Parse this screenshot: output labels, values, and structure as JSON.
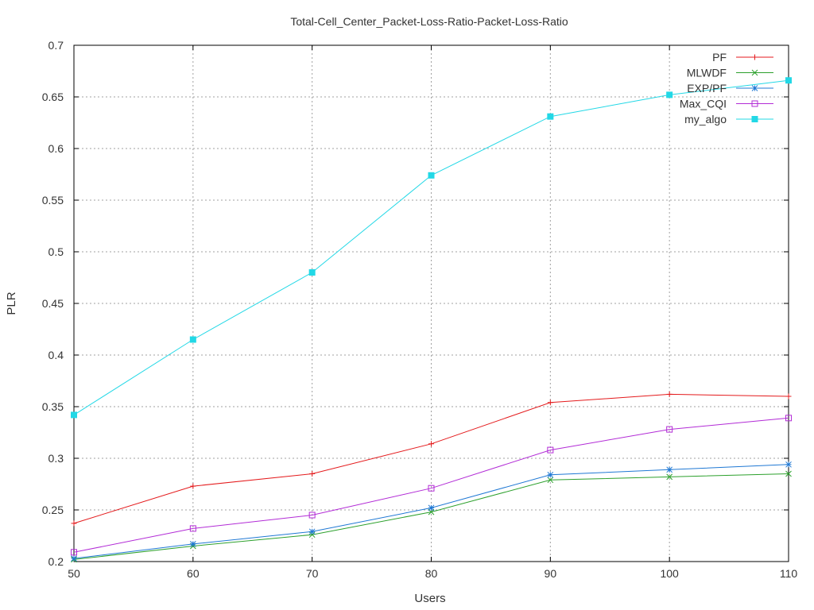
{
  "chart_data": {
    "type": "line",
    "title": "Total-Cell_Center_Packet-Loss-Ratio-Packet-Loss-Ratio",
    "xlabel": "Users",
    "ylabel": "PLR",
    "x": [
      50,
      60,
      70,
      80,
      90,
      100,
      110
    ],
    "xlim": [
      50,
      110
    ],
    "ylim": [
      0.2,
      0.7
    ],
    "x_ticks": [
      "50",
      "60",
      "70",
      "80",
      "90",
      "100",
      "110"
    ],
    "y_ticks": [
      "0.2",
      "0.25",
      "0.3",
      "0.35",
      "0.4",
      "0.45",
      "0.5",
      "0.55",
      "0.6",
      "0.65",
      "0.7"
    ],
    "grid": true,
    "legend_position": "top-right",
    "series": [
      {
        "name": "PF",
        "color": "#e41a1c",
        "marker": "plus",
        "values": [
          0.237,
          0.273,
          0.285,
          0.314,
          0.354,
          0.362,
          0.36
        ]
      },
      {
        "name": "MLWDF",
        "color": "#2ca02c",
        "marker": "cross",
        "values": [
          0.202,
          0.215,
          0.226,
          0.248,
          0.279,
          0.282,
          0.285
        ]
      },
      {
        "name": "EXP/PF",
        "color": "#1f78d4",
        "marker": "star",
        "values": [
          0.203,
          0.217,
          0.229,
          0.252,
          0.284,
          0.289,
          0.294
        ]
      },
      {
        "name": "Max_CQI",
        "color": "#b22bd6",
        "marker": "open-square",
        "values": [
          0.209,
          0.232,
          0.245,
          0.271,
          0.308,
          0.328,
          0.339
        ]
      },
      {
        "name": "my_algo",
        "color": "#22d8e6",
        "marker": "filled-square",
        "values": [
          0.342,
          0.415,
          0.48,
          0.574,
          0.631,
          0.652,
          0.666
        ]
      }
    ]
  }
}
